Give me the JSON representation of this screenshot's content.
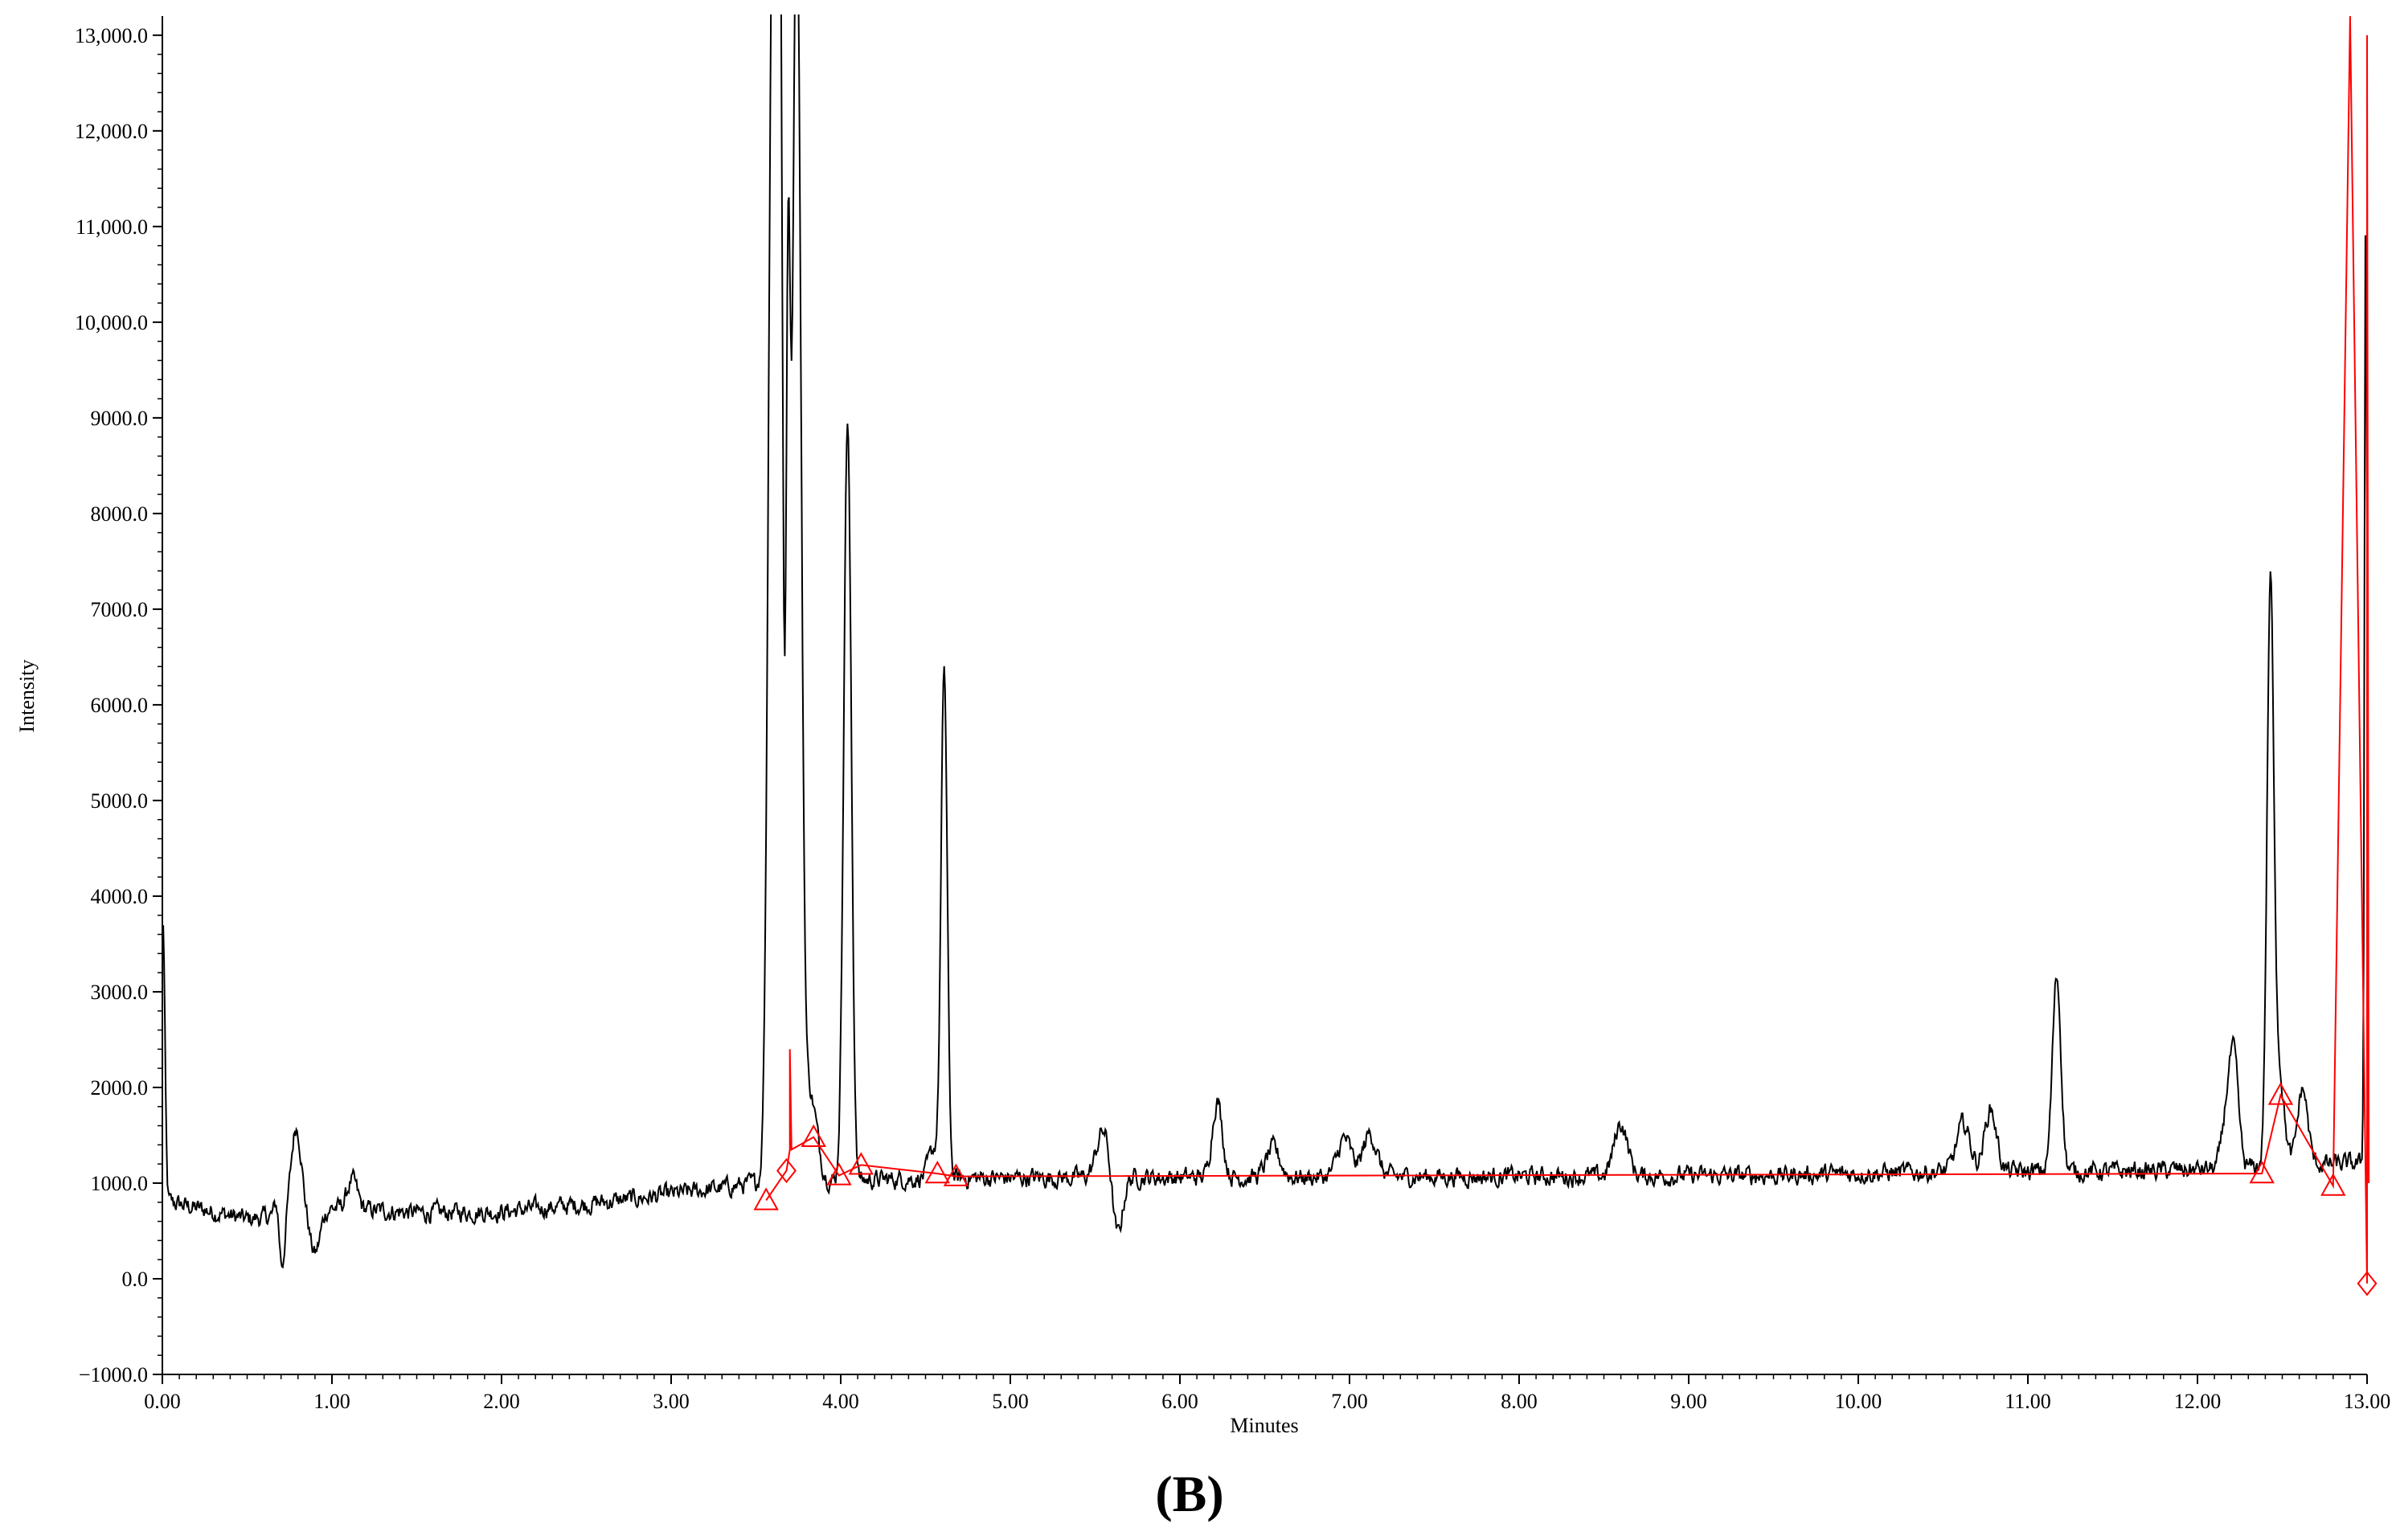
{
  "chart_data": {
    "type": "line",
    "title": "",
    "xlabel": "Minutes",
    "ylabel": "Intensity",
    "panel_label": "(B)",
    "xlim": [
      0,
      13
    ],
    "ylim": [
      -1000,
      13200
    ],
    "grid": false,
    "legend": "none",
    "x_ticks": [
      0,
      1,
      2,
      3,
      4,
      5,
      6,
      7,
      8,
      9,
      10,
      11,
      12,
      13
    ],
    "x_tick_labels": [
      "0.00",
      "1.00",
      "2.00",
      "3.00",
      "4.00",
      "5.00",
      "6.00",
      "7.00",
      "8.00",
      "9.00",
      "10.00",
      "11.00",
      "12.00",
      "13.00"
    ],
    "y_ticks": [
      -1000,
      0,
      1000,
      2000,
      3000,
      4000,
      5000,
      6000,
      7000,
      8000,
      9000,
      10000,
      11000,
      12000,
      13000
    ],
    "y_tick_labels": [
      "−1000.0",
      "0.0",
      "1000.0",
      "2000.0",
      "3000.0",
      "4000.0",
      "5000.0",
      "6000.0",
      "7000.0",
      "8000.0",
      "9000.0",
      "10,000.0",
      "11,000.0",
      "12,000.0",
      "13,000.0"
    ],
    "series": [
      {
        "color": "#000000",
        "baseline": [
          [
            0.05,
            800
          ],
          [
            0.5,
            620
          ],
          [
            1.0,
            740
          ],
          [
            1.5,
            690
          ],
          [
            2.0,
            700
          ],
          [
            2.5,
            780
          ],
          [
            3.0,
            880
          ],
          [
            3.5,
            1000
          ],
          [
            4.5,
            1050
          ],
          [
            5.5,
            1060
          ],
          [
            6.5,
            1060
          ],
          [
            7.5,
            1070
          ],
          [
            8.5,
            1070
          ],
          [
            9.5,
            1080
          ],
          [
            10.5,
            1120
          ],
          [
            11.5,
            1120
          ],
          [
            12.0,
            1140
          ],
          [
            12.8,
            1200
          ]
        ],
        "peaks": [
          [
            0.0,
            2000,
            0.01
          ],
          [
            0.01,
            1300,
            0.01
          ],
          [
            0.7,
            -650,
            0.02
          ],
          [
            0.68,
            400,
            0.015
          ],
          [
            0.79,
            900,
            0.03
          ],
          [
            0.9,
            -450,
            0.03
          ],
          [
            1.12,
            300,
            0.03
          ],
          [
            3.6,
            13500,
            0.025
          ],
          [
            3.64,
            11700,
            0.018
          ],
          [
            3.69,
            8200,
            0.012
          ],
          [
            3.74,
            13500,
            0.025
          ],
          [
            3.82,
            900,
            0.04
          ],
          [
            4.04,
            7950,
            0.022
          ],
          [
            4.55,
            300,
            0.03
          ],
          [
            4.61,
            5300,
            0.018
          ],
          [
            5.55,
            500,
            0.04
          ],
          [
            5.63,
            -650,
            0.03
          ],
          [
            6.22,
            800,
            0.03
          ],
          [
            6.55,
            300,
            0.04
          ],
          [
            6.97,
            400,
            0.04
          ],
          [
            7.12,
            450,
            0.04
          ],
          [
            8.6,
            550,
            0.04
          ],
          [
            10.62,
            500,
            0.04
          ],
          [
            10.78,
            650,
            0.035
          ],
          [
            11.17,
            2050,
            0.025
          ],
          [
            12.18,
            700,
            0.03
          ],
          [
            12.22,
            900,
            0.025
          ],
          [
            12.43,
            5900,
            0.02
          ],
          [
            12.48,
            1000,
            0.03
          ],
          [
            12.62,
            800,
            0.03
          ],
          [
            12.99,
            6700,
            0.006
          ],
          [
            13.0,
            5000,
            0.01
          ]
        ],
        "noise_amplitude": 110
      },
      {
        "color": "#ff0000",
        "points": [
          [
            3.56,
            820
          ],
          [
            3.68,
            1130
          ],
          [
            3.7,
            1350
          ],
          [
            3.7,
            2400
          ],
          [
            3.71,
            1350
          ],
          [
            3.84,
            1480
          ],
          [
            3.99,
            1080
          ],
          [
            4.12,
            1190
          ],
          [
            4.57,
            1100
          ],
          [
            4.68,
            1070
          ],
          [
            12.38,
            1100
          ],
          [
            12.49,
            1920
          ],
          [
            12.8,
            970
          ],
          [
            12.9,
            13200
          ],
          [
            13.0,
            -50
          ],
          [
            13.0,
            13000
          ],
          [
            13.01,
            1000
          ]
        ],
        "markers": [
          {
            "shape": "triangle",
            "x": 3.56,
            "y": 820
          },
          {
            "shape": "diamond",
            "x": 3.68,
            "y": 1130
          },
          {
            "shape": "triangle",
            "x": 3.84,
            "y": 1480
          },
          {
            "shape": "triangle",
            "x": 3.99,
            "y": 1080
          },
          {
            "shape": "triangle",
            "x": 4.12,
            "y": 1190
          },
          {
            "shape": "triangle",
            "x": 4.57,
            "y": 1100
          },
          {
            "shape": "triangle",
            "x": 4.68,
            "y": 1070
          },
          {
            "shape": "triangle",
            "x": 12.38,
            "y": 1100
          },
          {
            "shape": "triangle",
            "x": 12.49,
            "y": 1920
          },
          {
            "shape": "triangle",
            "x": 12.8,
            "y": 970
          },
          {
            "shape": "diamond",
            "x": 13.0,
            "y": -50
          }
        ]
      }
    ]
  }
}
